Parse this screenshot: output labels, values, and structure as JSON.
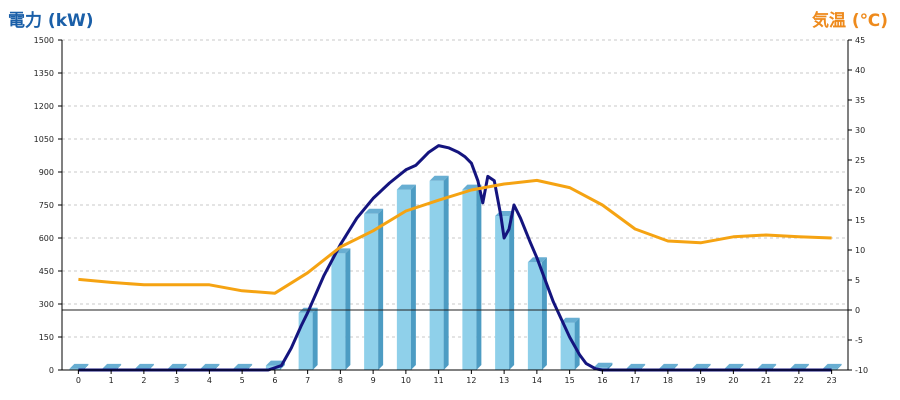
{
  "colors": {
    "left_axis_title": "#1a5fa8",
    "right_axis_title": "#ee8a1c",
    "bar_front": "#8fd0ea",
    "bar_side": "#4d9cc3",
    "bar_top": "#68aed2",
    "power_line": "#14147e",
    "temp_line": "#f5a312",
    "grid": "#c8c8c8",
    "axis": "#000000"
  },
  "chart_data": {
    "type": "bar",
    "ylabel": "電力 (kW)",
    "y2label": "気温 (℃)",
    "categories": [
      "0",
      "1",
      "2",
      "3",
      "4",
      "5",
      "6",
      "7",
      "8",
      "9",
      "10",
      "11",
      "12",
      "13",
      "14",
      "15",
      "16",
      "17",
      "18",
      "19",
      "20",
      "21",
      "22",
      "23"
    ],
    "ylim": [
      0,
      1500
    ],
    "yticks": [
      "0",
      "150",
      "300",
      "450",
      "600",
      "750",
      "900",
      "1050",
      "1200",
      "1350",
      "1500"
    ],
    "y2lim": [
      -10,
      45
    ],
    "y2ticks": [
      "-10",
      "-5",
      "0",
      "5",
      "10",
      "15",
      "20",
      "25",
      "30",
      "35",
      "40",
      "45"
    ],
    "grid": true,
    "series": [
      {
        "kind": "bar",
        "values": [
          5,
          5,
          5,
          5,
          5,
          5,
          20,
          260,
          530,
          710,
          820,
          860,
          820,
          700,
          490,
          215,
          10,
          5,
          5,
          5,
          5,
          5,
          5,
          5
        ]
      },
      {
        "kind": "line",
        "axis": "left",
        "x": [
          0,
          1,
          2,
          3,
          4,
          5,
          5.8,
          6.2,
          6.5,
          6.8,
          7,
          7.5,
          8,
          8.5,
          9,
          9.5,
          10,
          10.3,
          10.5,
          10.7,
          11,
          11.3,
          11.6,
          11.8,
          12,
          12.2,
          12.35,
          12.5,
          12.7,
          12.9,
          13,
          13.15,
          13.3,
          13.5,
          13.8,
          14,
          14.5,
          15,
          15.3,
          15.5,
          15.8,
          16,
          17,
          18,
          19,
          20,
          21,
          22,
          23
        ],
        "values": [
          0,
          0,
          0,
          0,
          0,
          0,
          0,
          20,
          100,
          200,
          260,
          430,
          570,
          690,
          780,
          850,
          910,
          930,
          960,
          990,
          1020,
          1010,
          990,
          970,
          940,
          860,
          760,
          880,
          860,
          700,
          600,
          640,
          750,
          690,
          580,
          510,
          310,
          150,
          70,
          30,
          5,
          0,
          0,
          0,
          0,
          0,
          0,
          0,
          0
        ]
      },
      {
        "kind": "line",
        "axis": "right",
        "values": [
          5.1,
          4.6,
          4.2,
          4.2,
          4.2,
          3.2,
          2.8,
          6.2,
          10.5,
          13.2,
          16.5,
          18.3,
          20.0,
          21.0,
          21.6,
          20.4,
          17.5,
          13.5,
          11.5,
          11.2,
          12.2,
          12.5,
          12.2,
          12.0
        ]
      }
    ]
  }
}
